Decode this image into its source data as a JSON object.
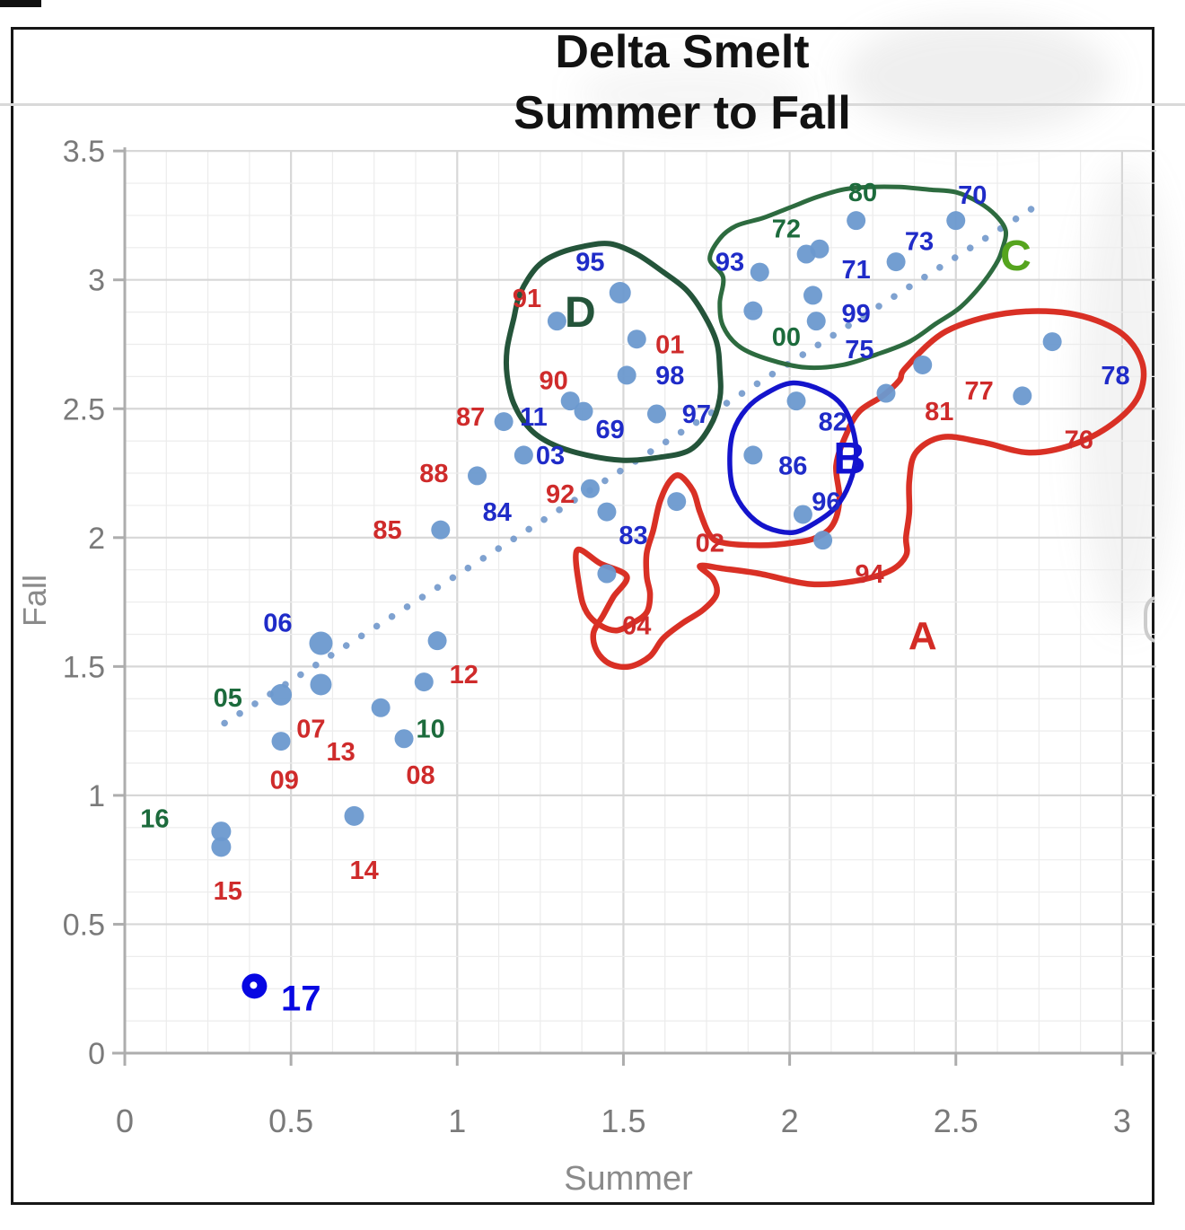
{
  "title": {
    "line1": "Delta Smelt",
    "line2": "Summer to Fall"
  },
  "colors": {
    "label_blue": "#1f2bc8",
    "label_red": "#cf2b2b",
    "label_green": "#1c6b3c",
    "letter_c_green": "#55a41e",
    "letter_d_green": "#24543a",
    "letter_b_blue": "#1212d0",
    "letter_a_red": "#d32b25",
    "dot": "#6c99cf",
    "trendline": "#7298cc",
    "outline_a": "#d93025",
    "outline_b": "#1414cc",
    "outline_c": "#2d6b3f",
    "outline_d": "#24543a",
    "special_point": "#0707e2",
    "axis": "#adadad",
    "tick_text": "#7a7a7a",
    "grid_minor": "#ececec",
    "grid_major": "#d7d7d7"
  },
  "chart_data": {
    "type": "scatter",
    "title": "Delta Smelt Summer to Fall",
    "xlabel": "Summer",
    "ylabel": "Fall",
    "xlim": [
      0,
      3
    ],
    "ylim": [
      0,
      3.5
    ],
    "grid": "minor every 0.125, major every 0.5",
    "legend": "none",
    "x_ticks": [
      "0",
      "0.5",
      "1",
      "1.5",
      "2",
      "2.5",
      "3"
    ],
    "x_tick_values": [
      0,
      0.5,
      1,
      1.5,
      2,
      2.5,
      3
    ],
    "y_ticks": [
      "3.5",
      "3",
      "2.5",
      "2",
      "1.5",
      "1",
      "0.5",
      "0"
    ],
    "y_tick_values": [
      3.5,
      3,
      2.5,
      2,
      1.5,
      1,
      0.5,
      0
    ],
    "trendline": {
      "style": "dotted",
      "x1": 0.3,
      "y1": 1.28,
      "x2": 2.77,
      "y2": 3.31
    },
    "dots": [
      [
        2.2,
        3.23
      ],
      [
        2.5,
        3.23
      ],
      [
        2.05,
        3.1
      ],
      [
        2.09,
        3.12
      ],
      [
        2.32,
        3.07
      ],
      [
        1.91,
        3.03
      ],
      [
        2.07,
        2.94
      ],
      [
        1.89,
        2.88
      ],
      [
        2.08,
        2.84
      ],
      [
        1.49,
        2.95,
        12
      ],
      [
        1.3,
        2.84
      ],
      [
        1.54,
        2.77
      ],
      [
        1.51,
        2.63
      ],
      [
        1.34,
        2.53
      ],
      [
        1.38,
        2.49
      ],
      [
        1.6,
        2.48
      ],
      [
        1.14,
        2.45
      ],
      [
        1.2,
        2.32
      ],
      [
        1.06,
        2.24
      ],
      [
        1.4,
        2.19
      ],
      [
        1.45,
        2.1
      ],
      [
        0.95,
        2.03
      ],
      [
        2.02,
        2.53
      ],
      [
        1.89,
        2.32
      ],
      [
        2.04,
        2.09
      ],
      [
        2.1,
        1.99
      ],
      [
        1.66,
        2.14
      ],
      [
        1.45,
        1.86
      ],
      [
        2.4,
        2.67
      ],
      [
        2.29,
        2.56
      ],
      [
        2.79,
        2.76
      ],
      [
        2.7,
        2.55
      ],
      [
        0.59,
        1.59,
        13
      ],
      [
        0.59,
        1.43,
        12
      ],
      [
        0.47,
        1.39,
        12
      ],
      [
        0.47,
        1.21
      ],
      [
        0.77,
        1.34
      ],
      [
        0.84,
        1.22
      ],
      [
        0.9,
        1.44
      ],
      [
        0.94,
        1.6
      ],
      [
        0.69,
        0.92,
        11
      ],
      [
        0.29,
        0.86,
        11
      ],
      [
        0.29,
        0.8,
        11
      ]
    ],
    "special_point": {
      "label": "17",
      "x": 0.39,
      "y": 0.26,
      "label_x": 0.53,
      "label_y": 0.21
    },
    "year_labels": [
      {
        "text": "80",
        "x": 2.22,
        "y": 3.34,
        "color": "green"
      },
      {
        "text": "70",
        "x": 2.55,
        "y": 3.33,
        "color": "blue"
      },
      {
        "text": "72",
        "x": 1.99,
        "y": 3.2,
        "color": "green"
      },
      {
        "text": "73",
        "x": 2.39,
        "y": 3.15,
        "color": "blue"
      },
      {
        "text": "93",
        "x": 1.82,
        "y": 3.07,
        "color": "blue"
      },
      {
        "text": "71",
        "x": 2.2,
        "y": 3.04,
        "color": "blue"
      },
      {
        "text": "99",
        "x": 2.2,
        "y": 2.87,
        "color": "blue"
      },
      {
        "text": "00",
        "x": 1.99,
        "y": 2.78,
        "color": "green"
      },
      {
        "text": "75",
        "x": 2.21,
        "y": 2.73,
        "color": "blue"
      },
      {
        "text": "95",
        "x": 1.4,
        "y": 3.07,
        "color": "blue"
      },
      {
        "text": "91",
        "x": 1.21,
        "y": 2.93,
        "color": "red"
      },
      {
        "text": "01",
        "x": 1.64,
        "y": 2.75,
        "color": "red"
      },
      {
        "text": "98",
        "x": 1.64,
        "y": 2.63,
        "color": "blue"
      },
      {
        "text": "90",
        "x": 1.29,
        "y": 2.61,
        "color": "red"
      },
      {
        "text": "87",
        "x": 1.04,
        "y": 2.47,
        "color": "red"
      },
      {
        "text": "11",
        "x": 1.23,
        "y": 2.47,
        "color": "blue"
      },
      {
        "text": "97",
        "x": 1.72,
        "y": 2.48,
        "color": "blue"
      },
      {
        "text": "69",
        "x": 1.46,
        "y": 2.42,
        "color": "blue"
      },
      {
        "text": "03",
        "x": 1.28,
        "y": 2.32,
        "color": "blue"
      },
      {
        "text": "88",
        "x": 0.93,
        "y": 2.25,
        "color": "red"
      },
      {
        "text": "92",
        "x": 1.31,
        "y": 2.17,
        "color": "red"
      },
      {
        "text": "84",
        "x": 1.12,
        "y": 2.1,
        "color": "blue"
      },
      {
        "text": "85",
        "x": 0.79,
        "y": 2.03,
        "color": "red"
      },
      {
        "text": "82",
        "x": 2.13,
        "y": 2.45,
        "color": "blue"
      },
      {
        "text": "86",
        "x": 2.01,
        "y": 2.28,
        "color": "blue"
      },
      {
        "text": "96",
        "x": 2.11,
        "y": 2.14,
        "color": "blue"
      },
      {
        "text": "83",
        "x": 1.53,
        "y": 2.01,
        "color": "blue"
      },
      {
        "text": "02",
        "x": 1.76,
        "y": 1.98,
        "color": "red"
      },
      {
        "text": "94",
        "x": 2.24,
        "y": 1.86,
        "color": "red"
      },
      {
        "text": "04",
        "x": 1.54,
        "y": 1.66,
        "color": "red"
      },
      {
        "text": "77",
        "x": 2.57,
        "y": 2.57,
        "color": "red"
      },
      {
        "text": "81",
        "x": 2.45,
        "y": 2.49,
        "color": "red"
      },
      {
        "text": "78",
        "x": 2.98,
        "y": 2.63,
        "color": "blue"
      },
      {
        "text": "76",
        "x": 2.87,
        "y": 2.38,
        "color": "red"
      },
      {
        "text": "06",
        "x": 0.46,
        "y": 1.67,
        "color": "blue"
      },
      {
        "text": "05",
        "x": 0.31,
        "y": 1.38,
        "color": "green"
      },
      {
        "text": "07",
        "x": 0.56,
        "y": 1.26,
        "color": "red"
      },
      {
        "text": "13",
        "x": 0.65,
        "y": 1.17,
        "color": "red"
      },
      {
        "text": "10",
        "x": 0.92,
        "y": 1.26,
        "color": "green"
      },
      {
        "text": "12",
        "x": 1.02,
        "y": 1.47,
        "color": "red"
      },
      {
        "text": "09",
        "x": 0.48,
        "y": 1.06,
        "color": "red"
      },
      {
        "text": "08",
        "x": 0.89,
        "y": 1.08,
        "color": "red"
      },
      {
        "text": "16",
        "x": 0.09,
        "y": 0.91,
        "color": "green"
      },
      {
        "text": "14",
        "x": 0.72,
        "y": 0.71,
        "color": "red"
      },
      {
        "text": "15",
        "x": 0.31,
        "y": 0.63,
        "color": "red"
      }
    ],
    "cluster_letters": [
      {
        "text": "A",
        "x": 2.4,
        "y": 1.62,
        "color_key": "letter_a_red",
        "size": 44
      },
      {
        "text": "B",
        "x": 2.18,
        "y": 2.3,
        "color_key": "letter_b_blue",
        "size": 50
      },
      {
        "text": "C",
        "x": 2.68,
        "y": 3.09,
        "color_key": "letter_c_green",
        "size": 48
      },
      {
        "text": "D",
        "x": 1.37,
        "y": 2.87,
        "color_key": "letter_d_green",
        "size": 48
      }
    ],
    "outlines": {
      "A": [
        [
          2.35,
          2.66
        ],
        [
          2.47,
          2.8
        ],
        [
          2.65,
          2.87
        ],
        [
          2.84,
          2.87
        ],
        [
          2.99,
          2.8
        ],
        [
          3.06,
          2.68
        ],
        [
          3.05,
          2.55
        ],
        [
          2.97,
          2.44
        ],
        [
          2.85,
          2.36
        ],
        [
          2.72,
          2.33
        ],
        [
          2.58,
          2.37
        ],
        [
          2.46,
          2.39
        ],
        [
          2.38,
          2.33
        ],
        [
          2.36,
          2.22
        ],
        [
          2.36,
          2.1
        ],
        [
          2.35,
          2.0
        ],
        [
          2.35,
          1.93
        ],
        [
          2.3,
          1.87
        ],
        [
          2.19,
          1.83
        ],
        [
          2.06,
          1.82
        ],
        [
          1.91,
          1.86
        ],
        [
          1.8,
          1.88
        ],
        [
          1.73,
          1.89
        ],
        [
          1.77,
          1.84
        ],
        [
          1.78,
          1.78
        ],
        [
          1.74,
          1.72
        ],
        [
          1.68,
          1.67
        ],
        [
          1.62,
          1.61
        ],
        [
          1.58,
          1.54
        ],
        [
          1.52,
          1.5
        ],
        [
          1.46,
          1.51
        ],
        [
          1.42,
          1.56
        ],
        [
          1.41,
          1.63
        ],
        [
          1.44,
          1.7
        ],
        [
          1.47,
          1.77
        ],
        [
          1.51,
          1.85
        ],
        [
          1.43,
          1.9
        ],
        [
          1.36,
          1.95
        ],
        [
          1.37,
          1.79
        ],
        [
          1.39,
          1.71
        ],
        [
          1.43,
          1.66
        ],
        [
          1.48,
          1.64
        ],
        [
          1.53,
          1.67
        ],
        [
          1.57,
          1.71
        ],
        [
          1.58,
          1.78
        ],
        [
          1.57,
          1.85
        ],
        [
          1.57,
          1.94
        ],
        [
          1.59,
          2.03
        ],
        [
          1.61,
          2.14
        ],
        [
          1.64,
          2.22
        ],
        [
          1.67,
          2.24
        ],
        [
          1.71,
          2.18
        ],
        [
          1.73,
          2.1
        ],
        [
          1.76,
          2.01
        ],
        [
          1.8,
          1.98
        ],
        [
          1.91,
          1.97
        ],
        [
          2.01,
          1.98
        ],
        [
          2.08,
          2.0
        ],
        [
          2.13,
          2.05
        ],
        [
          2.15,
          2.15
        ],
        [
          2.14,
          2.28
        ],
        [
          2.17,
          2.4
        ],
        [
          2.21,
          2.49
        ],
        [
          2.28,
          2.55
        ],
        [
          2.33,
          2.61
        ]
      ],
      "B": [
        [
          2.01,
          2.6
        ],
        [
          2.1,
          2.57
        ],
        [
          2.16,
          2.51
        ],
        [
          2.19,
          2.42
        ],
        [
          2.2,
          2.32
        ],
        [
          2.18,
          2.21
        ],
        [
          2.14,
          2.12
        ],
        [
          2.08,
          2.06
        ],
        [
          2.01,
          2.02
        ],
        [
          1.93,
          2.04
        ],
        [
          1.87,
          2.1
        ],
        [
          1.83,
          2.19
        ],
        [
          1.82,
          2.3
        ],
        [
          1.83,
          2.41
        ],
        [
          1.87,
          2.5
        ],
        [
          1.93,
          2.56
        ]
      ],
      "C": [
        [
          1.8,
          3.01
        ],
        [
          1.76,
          3.08
        ],
        [
          1.79,
          3.16
        ],
        [
          1.84,
          3.21
        ],
        [
          1.92,
          3.24
        ],
        [
          2.0,
          3.28
        ],
        [
          2.08,
          3.32
        ],
        [
          2.16,
          3.35
        ],
        [
          2.24,
          3.36
        ],
        [
          2.33,
          3.36
        ],
        [
          2.42,
          3.35
        ],
        [
          2.5,
          3.34
        ],
        [
          2.57,
          3.3
        ],
        [
          2.62,
          3.25
        ],
        [
          2.65,
          3.19
        ],
        [
          2.64,
          3.12
        ],
        [
          2.62,
          3.06
        ],
        [
          2.57,
          2.97
        ],
        [
          2.51,
          2.89
        ],
        [
          2.44,
          2.83
        ],
        [
          2.36,
          2.76
        ],
        [
          2.26,
          2.71
        ],
        [
          2.16,
          2.67
        ],
        [
          2.05,
          2.66
        ],
        [
          1.94,
          2.69
        ],
        [
          1.85,
          2.74
        ],
        [
          1.8,
          2.82
        ],
        [
          1.79,
          2.91
        ]
      ],
      "D": [
        [
          1.24,
          3.05
        ],
        [
          1.3,
          3.1
        ],
        [
          1.38,
          3.13
        ],
        [
          1.46,
          3.14
        ],
        [
          1.54,
          3.1
        ],
        [
          1.62,
          3.03
        ],
        [
          1.69,
          2.96
        ],
        [
          1.74,
          2.87
        ],
        [
          1.78,
          2.76
        ],
        [
          1.79,
          2.65
        ],
        [
          1.79,
          2.54
        ],
        [
          1.76,
          2.43
        ],
        [
          1.7,
          2.34
        ],
        [
          1.6,
          2.31
        ],
        [
          1.5,
          2.3
        ],
        [
          1.39,
          2.32
        ],
        [
          1.29,
          2.36
        ],
        [
          1.22,
          2.42
        ],
        [
          1.17,
          2.52
        ],
        [
          1.15,
          2.63
        ],
        [
          1.15,
          2.73
        ],
        [
          1.17,
          2.85
        ],
        [
          1.19,
          2.95
        ]
      ]
    }
  }
}
